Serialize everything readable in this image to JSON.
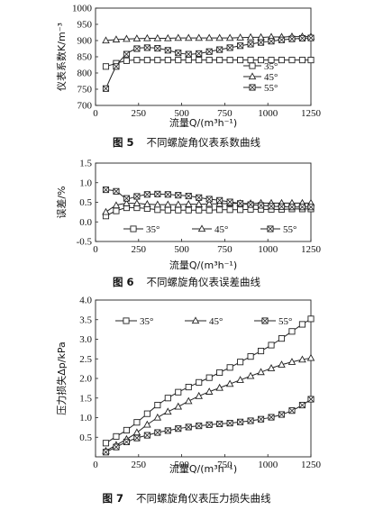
{
  "chart_data": [
    {
      "type": "line",
      "number": "图 5",
      "title": "不同螺旋角仪表系数曲线",
      "xlabel": "流量Q/(m³h⁻¹)",
      "ylabel": "仪表系数K/m⁻³",
      "xlim": [
        0,
        1250
      ],
      "ylim": [
        700,
        1000
      ],
      "xticks": [
        0,
        250,
        500,
        750,
        1000,
        1250
      ],
      "yticks": [
        700,
        750,
        800,
        850,
        900,
        950,
        1000
      ],
      "legend_position": "bottom-right, inside",
      "series": [
        {
          "name": "35°",
          "marker": "square",
          "x": [
            60,
            120,
            180,
            240,
            300,
            360,
            420,
            480,
            540,
            600,
            660,
            720,
            780,
            840,
            900,
            960,
            1020,
            1080,
            1140,
            1200,
            1250
          ],
          "values": [
            820,
            830,
            838,
            840,
            840,
            840,
            840,
            840,
            840,
            840,
            840,
            840,
            840,
            840,
            840,
            840,
            840,
            840,
            840,
            840,
            840
          ]
        },
        {
          "name": "45°",
          "marker": "triangle",
          "x": [
            60,
            120,
            180,
            240,
            300,
            360,
            420,
            480,
            540,
            600,
            660,
            720,
            780,
            840,
            900,
            960,
            1020,
            1080,
            1140,
            1200,
            1250
          ],
          "values": [
            900,
            903,
            905,
            906,
            907,
            907,
            907,
            908,
            908,
            908,
            908,
            908,
            908,
            909,
            910,
            910,
            911,
            911,
            912,
            912,
            912
          ]
        },
        {
          "name": "55°",
          "marker": "square-x",
          "x": [
            60,
            120,
            180,
            240,
            300,
            360,
            420,
            480,
            540,
            600,
            660,
            720,
            780,
            840,
            900,
            960,
            1020,
            1080,
            1140,
            1200,
            1250
          ],
          "values": [
            752,
            820,
            858,
            875,
            878,
            876,
            870,
            862,
            858,
            860,
            866,
            872,
            878,
            884,
            889,
            894,
            898,
            902,
            905,
            907,
            908
          ]
        }
      ]
    },
    {
      "type": "line",
      "number": "图 6",
      "title": "不同螺旋角仪表误差曲线",
      "xlabel": "流量Q/(m³h⁻¹)",
      "ylabel": "误差/%",
      "xlim": [
        0,
        1250
      ],
      "ylim": [
        -0.5,
        1.5
      ],
      "xticks": [
        0,
        250,
        500,
        750,
        1000,
        1250
      ],
      "yticks": [
        -0.5,
        0.0,
        0.5,
        1.0,
        1.5
      ],
      "legend_position": "bottom, inside",
      "series": [
        {
          "name": "35°",
          "marker": "square",
          "x": [
            60,
            120,
            180,
            240,
            300,
            360,
            420,
            480,
            540,
            600,
            660,
            720,
            780,
            840,
            900,
            960,
            1020,
            1080,
            1140,
            1200,
            1250
          ],
          "values": [
            0.15,
            0.28,
            0.36,
            0.36,
            0.34,
            0.31,
            0.3,
            0.3,
            0.3,
            0.3,
            0.3,
            0.31,
            0.31,
            0.31,
            0.32,
            0.32,
            0.32,
            0.32,
            0.33,
            0.33,
            0.33
          ]
        },
        {
          "name": "45°",
          "marker": "triangle",
          "x": [
            60,
            120,
            180,
            240,
            300,
            360,
            420,
            480,
            540,
            600,
            660,
            720,
            780,
            840,
            900,
            960,
            1020,
            1080,
            1140,
            1200,
            1250
          ],
          "values": [
            0.25,
            0.42,
            0.47,
            0.47,
            0.45,
            0.44,
            0.44,
            0.44,
            0.45,
            0.45,
            0.46,
            0.46,
            0.47,
            0.47,
            0.47,
            0.48,
            0.48,
            0.48,
            0.48,
            0.48,
            0.48
          ]
        },
        {
          "name": "55°",
          "marker": "square-x",
          "x": [
            60,
            120,
            180,
            240,
            300,
            360,
            420,
            480,
            540,
            600,
            660,
            720,
            780,
            840,
            900,
            960,
            1020,
            1080,
            1140,
            1200,
            1250
          ],
          "values": [
            0.82,
            0.78,
            0.6,
            0.65,
            0.7,
            0.71,
            0.7,
            0.68,
            0.66,
            0.62,
            0.58,
            0.55,
            0.51,
            0.47,
            0.44,
            0.42,
            0.4,
            0.39,
            0.38,
            0.38,
            0.38
          ]
        }
      ]
    },
    {
      "type": "line",
      "number": "图 7",
      "title": "不同螺旋角仪表压力损失曲线",
      "xlabel": "流量Q/(m³h⁻¹)",
      "ylabel": "压力损失Δp/kPa",
      "xlim": [
        0,
        1250
      ],
      "ylim": [
        0,
        4.0
      ],
      "xticks": [
        0,
        250,
        500,
        750,
        1000,
        1250
      ],
      "yticks": [
        0.5,
        1.0,
        1.5,
        2.0,
        2.5,
        3.0,
        3.5,
        4.0
      ],
      "legend_position": "top, inside",
      "series": [
        {
          "name": "35°",
          "marker": "square",
          "x": [
            60,
            120,
            180,
            240,
            300,
            360,
            420,
            480,
            540,
            600,
            660,
            720,
            780,
            840,
            900,
            960,
            1020,
            1080,
            1140,
            1200,
            1250
          ],
          "values": [
            0.35,
            0.52,
            0.68,
            0.88,
            1.1,
            1.32,
            1.5,
            1.65,
            1.78,
            1.9,
            2.02,
            2.15,
            2.28,
            2.42,
            2.56,
            2.7,
            2.85,
            3.02,
            3.2,
            3.38,
            3.52
          ]
        },
        {
          "name": "45°",
          "marker": "triangle",
          "x": [
            60,
            120,
            180,
            240,
            300,
            360,
            420,
            480,
            540,
            600,
            660,
            720,
            780,
            840,
            900,
            960,
            1020,
            1080,
            1140,
            1200,
            1250
          ],
          "values": [
            0.15,
            0.3,
            0.45,
            0.62,
            0.82,
            1.0,
            1.15,
            1.28,
            1.42,
            1.55,
            1.66,
            1.76,
            1.86,
            1.96,
            2.06,
            2.16,
            2.26,
            2.35,
            2.42,
            2.48,
            2.52
          ]
        },
        {
          "name": "55°",
          "marker": "square-x",
          "x": [
            60,
            120,
            180,
            240,
            300,
            360,
            420,
            480,
            540,
            600,
            660,
            720,
            780,
            840,
            900,
            960,
            1020,
            1080,
            1140,
            1200,
            1250
          ],
          "values": [
            0.12,
            0.25,
            0.38,
            0.48,
            0.55,
            0.62,
            0.67,
            0.72,
            0.76,
            0.79,
            0.82,
            0.84,
            0.86,
            0.89,
            0.92,
            0.96,
            1.01,
            1.08,
            1.18,
            1.32,
            1.47
          ]
        }
      ]
    }
  ]
}
